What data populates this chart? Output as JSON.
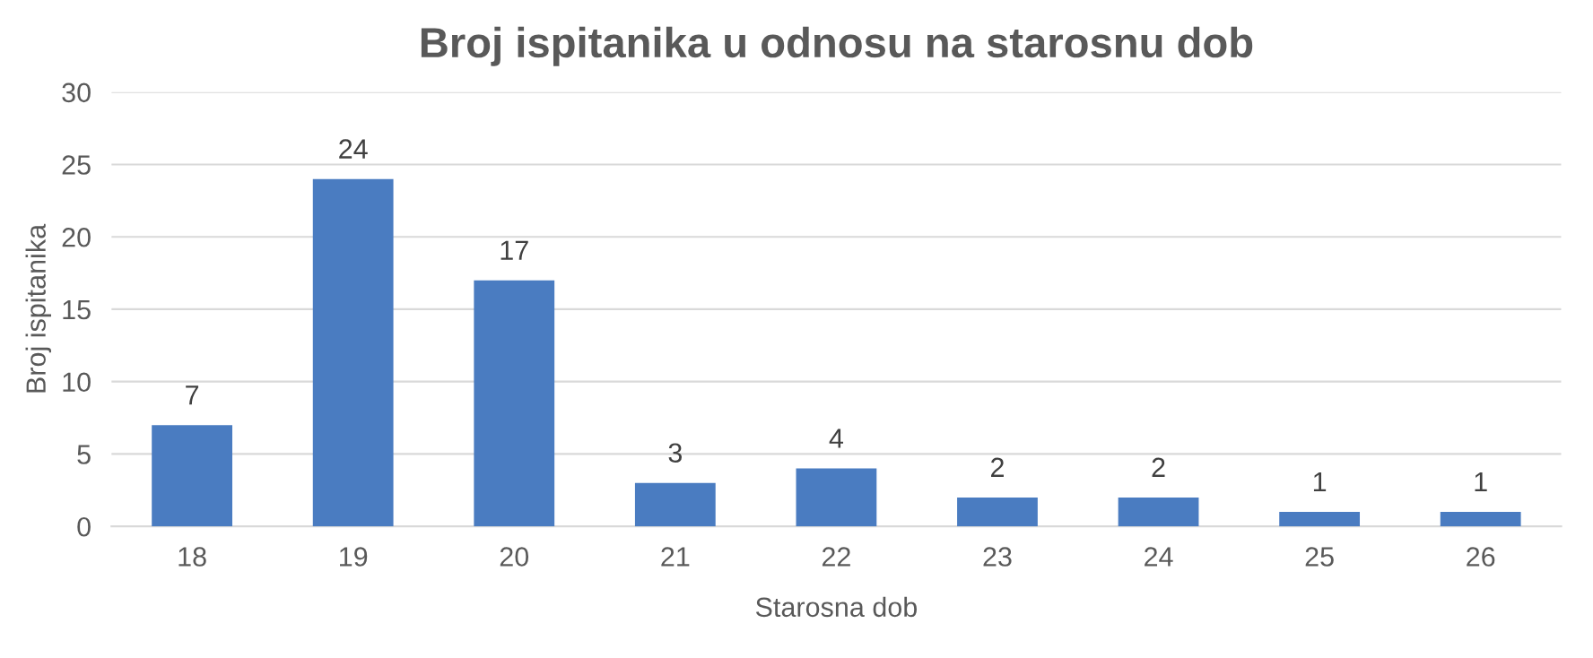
{
  "chart_data": {
    "type": "bar",
    "title": "Broj ispitanika u odnosu na starosnu dob",
    "xlabel": "Starosna dob",
    "ylabel": "Broj ispitanika",
    "categories": [
      "18",
      "19",
      "20",
      "21",
      "22",
      "23",
      "24",
      "25",
      "26"
    ],
    "values": [
      7,
      24,
      17,
      3,
      4,
      2,
      2,
      1,
      1
    ],
    "color": "#4a7cc1",
    "ylim": [
      0,
      30
    ],
    "yticks": [
      0,
      5,
      10,
      15,
      20,
      25,
      30
    ],
    "grid": "y",
    "data_labels": true,
    "legend": false
  }
}
